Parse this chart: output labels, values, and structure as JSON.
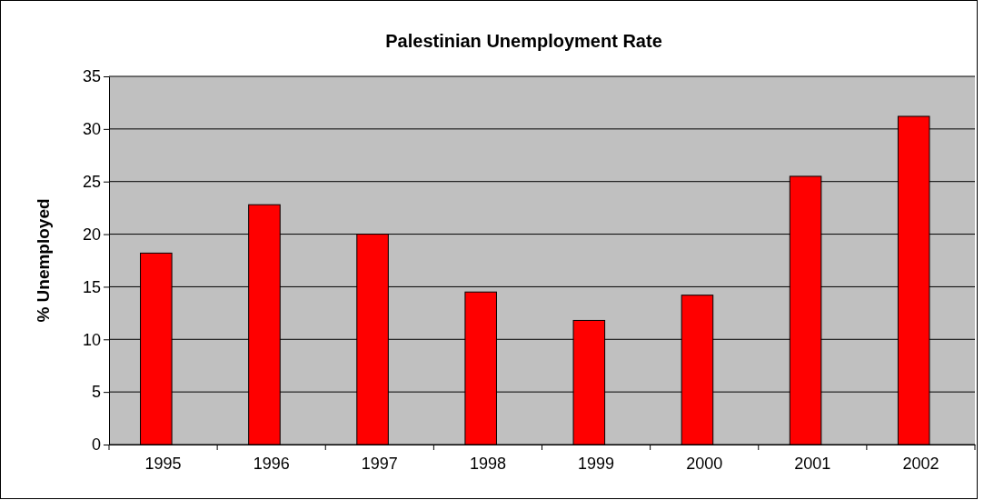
{
  "chart_data": {
    "type": "bar",
    "title": "Palestinian Unemployment Rate",
    "ylabel": "% Unemployed",
    "categories": [
      "1995",
      "1996",
      "1997",
      "1998",
      "1999",
      "2000",
      "2001",
      "2002"
    ],
    "values": [
      18.2,
      22.8,
      20.0,
      14.5,
      11.8,
      14.2,
      25.5,
      31.2
    ],
    "color": "#ff0000",
    "ylim": [
      0,
      35
    ],
    "yticks": [
      0,
      5,
      10,
      15,
      20,
      25,
      30,
      35
    ],
    "grid": "y"
  }
}
